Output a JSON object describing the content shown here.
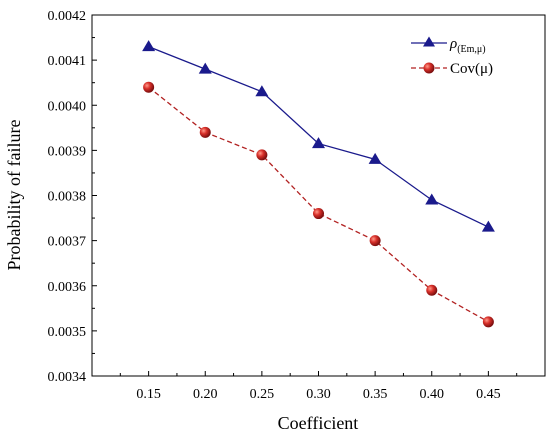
{
  "chart_data": {
    "type": "line",
    "xlabel": "Coefficient",
    "ylabel": "Probability of failure",
    "x": [
      0.15,
      0.2,
      0.25,
      0.3,
      0.35,
      0.4,
      0.45
    ],
    "x_tick_labels": [
      "0.15",
      "0.20",
      "0.25",
      "0.30",
      "0.35",
      "0.40",
      "0.45"
    ],
    "xlim": [
      0.1,
      0.5
    ],
    "ylim": [
      0.0034,
      0.0042
    ],
    "y_ticks": [
      0.0034,
      0.0035,
      0.0036,
      0.0037,
      0.0038,
      0.0039,
      0.004,
      0.0041,
      0.0042
    ],
    "y_tick_labels": [
      "0.0034",
      "0.0035",
      "0.0036",
      "0.0037",
      "0.0038",
      "0.0039",
      "0.0040",
      "0.0041",
      "0.0042"
    ],
    "grid": false,
    "legend_position": "top-right",
    "series": [
      {
        "name": "ρ(Em,μ)",
        "legend_symbol": "ρ",
        "legend_subscript": "(Em,μ)",
        "color": "#1a1a8c",
        "marker": "triangle",
        "line_style": "solid",
        "values": [
          0.00413,
          0.00408,
          0.00403,
          0.003915,
          0.00388,
          0.00379,
          0.00373
        ]
      },
      {
        "name": "Cov(μ)",
        "color": "#b22222",
        "marker": "circle",
        "line_style": "dashed",
        "values": [
          0.00404,
          0.00394,
          0.00389,
          0.00376,
          0.0037,
          0.00359,
          0.00352
        ]
      }
    ]
  }
}
